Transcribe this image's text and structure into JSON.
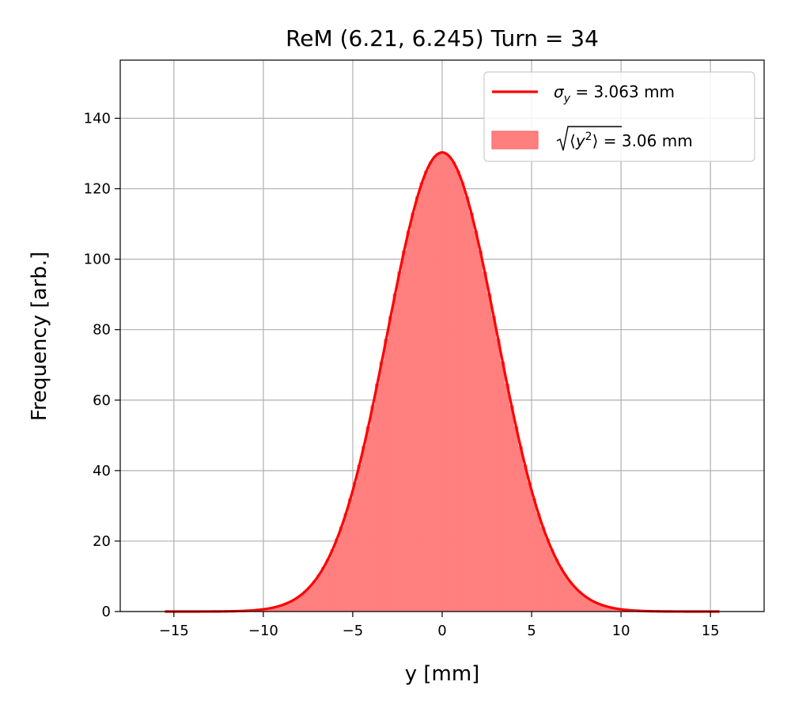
{
  "chart_data": {
    "type": "bar",
    "title": "ReM (6.21, 6.245) Turn = 34",
    "xlabel": "y [mm]",
    "ylabel": "Frequency [arb.]",
    "xlim": [
      -18,
      18
    ],
    "ylim": [
      0,
      156.5
    ],
    "xticks": [
      -15,
      -10,
      -5,
      0,
      5,
      10,
      15
    ],
    "xtick_labels": [
      "−15",
      "−10",
      "−5",
      "0",
      "5",
      "10",
      "15"
    ],
    "yticks": [
      0,
      20,
      40,
      60,
      80,
      100,
      120,
      140
    ],
    "ytick_labels": [
      "0",
      "20",
      "40",
      "60",
      "80",
      "100",
      "120",
      "140"
    ],
    "grid": true,
    "legend_position": "top-right",
    "colors": {
      "line": "#ff0000",
      "fill": "#ff7f7f",
      "fill_edge": "#ff6a6a",
      "grid": "#b0b0b0"
    },
    "series": [
      {
        "name": "σ_y = 3.063 mm",
        "kind": "line",
        "peak": 130.3,
        "center": 0,
        "sigma": 3.063,
        "x_range": [
          -15.5,
          15.5
        ]
      },
      {
        "name": "√⟨y²⟩ = 3.06 mm",
        "kind": "histogram",
        "bin_width": 0.25,
        "x_range": [
          -15.5,
          15.5
        ],
        "peak": 130.3,
        "center": 0,
        "rms": 3.06
      }
    ]
  }
}
